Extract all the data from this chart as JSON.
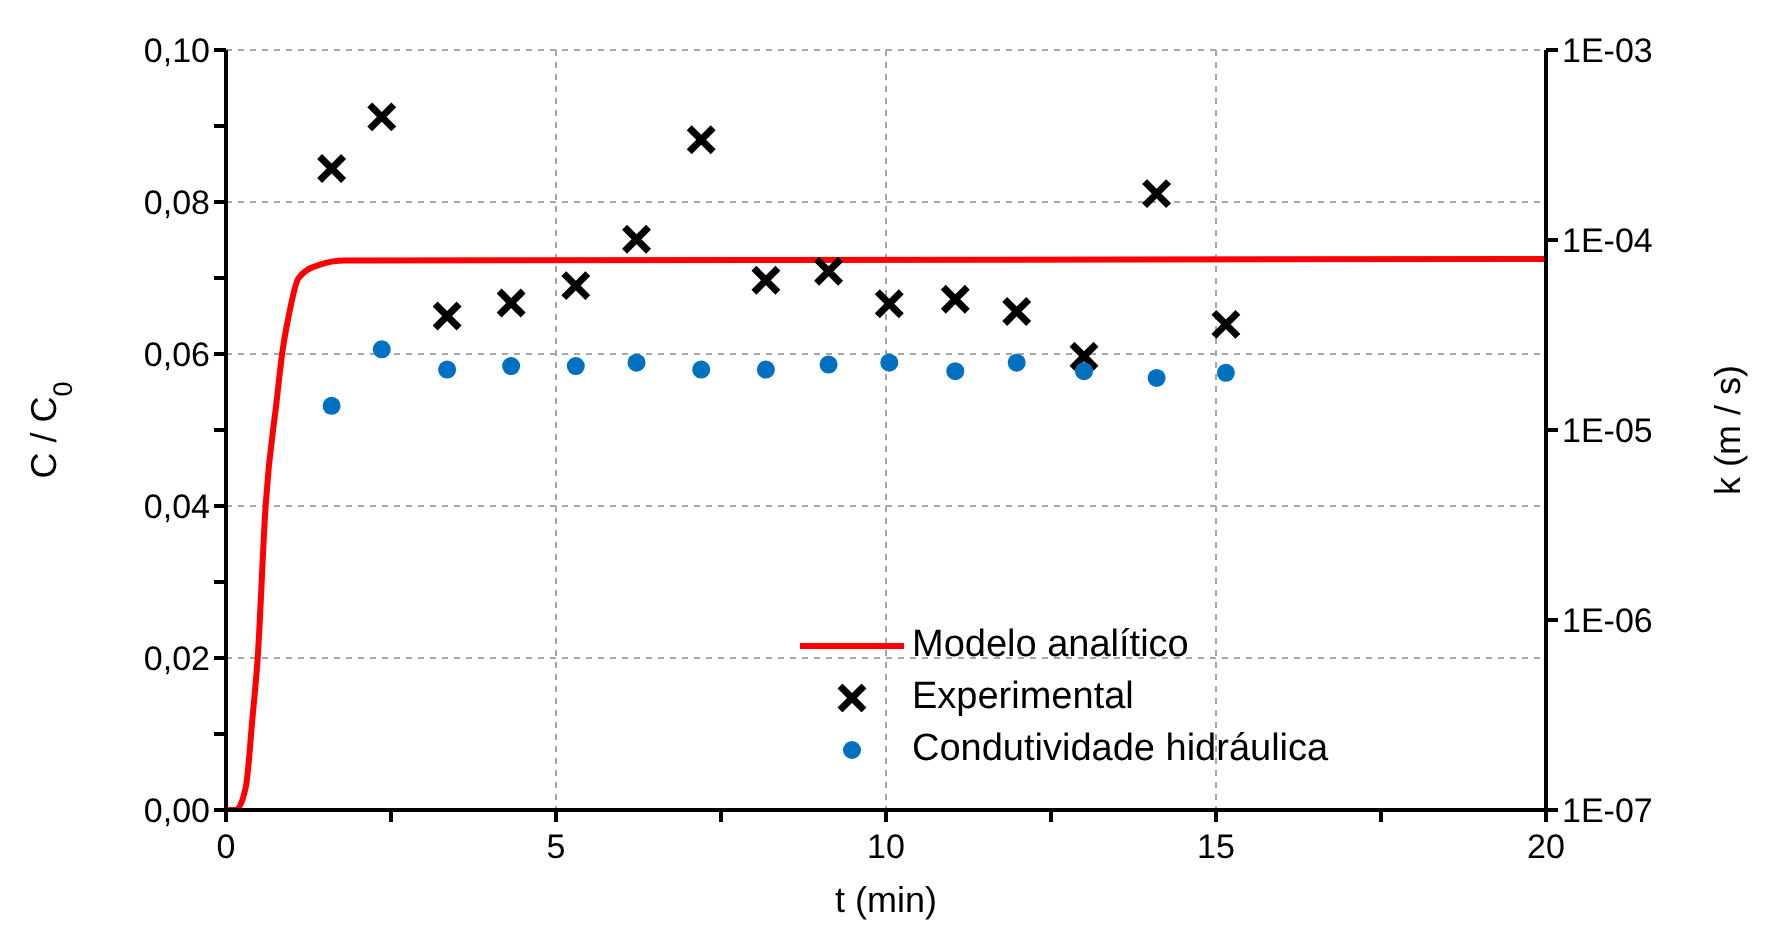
{
  "chart_data": {
    "type": "scatter",
    "xlabel": "t (min)",
    "ylabel": "C / C$_{0}$",
    "y2label": "k (m / s)",
    "xlim": [
      0,
      20
    ],
    "xticks": [
      0,
      {
        "value": 2.5,
        "label": null
      },
      5,
      {
        "value": 7.5,
        "label": null
      },
      10,
      {
        "value": 12.5,
        "label": null
      },
      15,
      {
        "value": 17.5,
        "label": null
      },
      20
    ],
    "ylim": [
      0,
      0.1
    ],
    "yticks": [
      {
        "value": 0,
        "label": "0,00"
      },
      {
        "value": 0.01,
        "label": null
      },
      {
        "value": 0.02,
        "label": "0,02"
      },
      {
        "value": 0.03,
        "label": null
      },
      {
        "value": 0.04,
        "label": "0,04"
      },
      {
        "value": 0.05,
        "label": null
      },
      {
        "value": 0.06,
        "label": "0,06"
      },
      {
        "value": 0.07,
        "label": null
      },
      {
        "value": 0.08,
        "label": "0,08"
      },
      {
        "value": 0.09,
        "label": null
      },
      {
        "value": 0.1,
        "label": "0,10"
      }
    ],
    "y2lim": [
      1e-07,
      0.001
    ],
    "y2ticks": [
      {
        "value": 1e-07,
        "label": "1E-07"
      },
      {
        "value": 1e-06,
        "label": "1E-06"
      },
      {
        "value": 1e-05,
        "label": "1E-05"
      },
      {
        "value": 0.0001,
        "label": "1E-04"
      },
      {
        "value": 0.001,
        "label": "1E-03"
      }
    ],
    "log": "y2",
    "grid": true,
    "legend": "bottom right",
    "series": [
      {
        "name": "Modelo analítico",
        "type": "line",
        "marker": "none",
        "color": "#ff0000",
        "x": [
          0,
          0.15,
          0.3,
          0.4,
          0.48,
          0.6,
          0.77,
          0.85,
          0.95,
          1.1,
          1.4,
          1.8,
          20
        ],
        "values": [
          0,
          0,
          0.003,
          0.012,
          0.02,
          0.04,
          0.054,
          0.06,
          0.065,
          0.07,
          0.0717,
          0.0723,
          0.0725
        ]
      },
      {
        "name": "Experimental",
        "marker": "cross",
        "color": "#000000",
        "x": [
          1.6,
          2.36,
          3.35,
          4.32,
          5.3,
          6.22,
          7.2,
          8.18,
          9.13,
          10.05,
          11.05,
          11.98,
          13.0,
          14.1,
          15.15
        ],
        "values": [
          0.0844,
          0.0912,
          0.065,
          0.0667,
          0.069,
          0.0751,
          0.0882,
          0.0697,
          0.0709,
          0.0666,
          0.0672,
          0.0656,
          0.0597,
          0.0811,
          0.0639
        ]
      },
      {
        "name": "Condutividade hidráulica",
        "marker": "circle",
        "axis": "y2",
        "color": "#0070c0",
        "x": [
          1.6,
          2.36,
          3.35,
          4.32,
          5.3,
          6.22,
          7.2,
          8.18,
          9.13,
          10.05,
          11.05,
          11.98,
          13.0,
          14.1,
          15.15
        ],
        "values": [
          1.34e-05,
          2.66e-05,
          2.08e-05,
          2.17e-05,
          2.17e-05,
          2.26e-05,
          2.08e-05,
          2.08e-05,
          2.21e-05,
          2.26e-05,
          2.04e-05,
          2.26e-05,
          2.04e-05,
          1.88e-05,
          2e-05
        ]
      }
    ]
  }
}
